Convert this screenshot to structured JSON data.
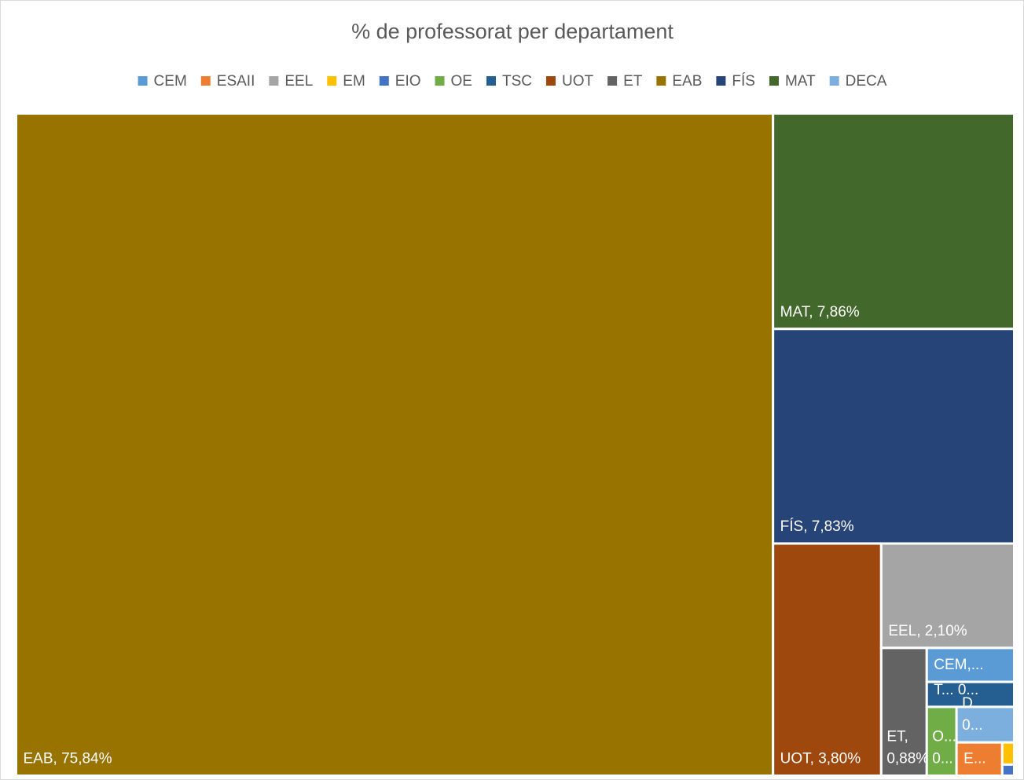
{
  "chart_data": {
    "type": "treemap",
    "title": "% de professorat per departament",
    "categories": [
      "CEM",
      "ESAII",
      "EEL",
      "EM",
      "EIO",
      "OE",
      "TSC",
      "UOT",
      "ET",
      "EAB",
      "FÍS",
      "MAT",
      "DECA"
    ],
    "values": [
      0.45,
      0.23,
      2.1,
      0.04,
      0.02,
      0.31,
      0.33,
      3.8,
      0.88,
      75.84,
      7.83,
      7.86,
      0.31
    ],
    "value_labels": [
      "CEM,...",
      "E...",
      "EEL, 2,10%",
      null,
      null,
      "O... 0...",
      "T... 0...",
      "UOT, 3,80%",
      "ET, 0,88%",
      "EAB, 75,84%",
      "FÍS, 7,83%",
      "MAT, 7,86%",
      "D... 0..."
    ],
    "colors": [
      "#5b9bd5",
      "#ed7d31",
      "#a5a5a5",
      "#ffc000",
      "#4472c4",
      "#70ad47",
      "#255e91",
      "#9e480e",
      "#636363",
      "#997300",
      "#264478",
      "#43682b",
      "#7cafdd"
    ],
    "legend": "top"
  }
}
